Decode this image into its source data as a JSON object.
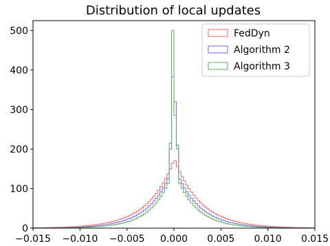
{
  "chart_data": {
    "type": "histogram",
    "title": "Distribution of local updates",
    "xlabel": "",
    "ylabel": "",
    "xlim": [
      -0.015,
      0.015
    ],
    "ylim": [
      0,
      525
    ],
    "x_ticks": [
      -0.015,
      -0.01,
      -0.005,
      0.0,
      0.005,
      0.01,
      0.015
    ],
    "x_tick_labels": [
      "−0.015",
      "−0.010",
      "−0.005",
      "0.000",
      "0.005",
      "0.010",
      "0.015"
    ],
    "y_ticks": [
      0,
      100,
      200,
      300,
      400,
      500
    ],
    "y_tick_labels": [
      "0",
      "100",
      "200",
      "300",
      "400",
      "500"
    ],
    "grid": false,
    "legend_position": "top-right",
    "bin_width": 0.00025,
    "series": [
      {
        "name": "FedDyn",
        "color": "#ff6666",
        "peak": 175,
        "peak_center": 5e-05,
        "decay": 0.0028,
        "spike_height": 0,
        "spike_bins": []
      },
      {
        "name": "Algorithm 2",
        "color": "#6a6aef",
        "peak": 160,
        "peak_center": 0.0,
        "decay": 0.0025,
        "spike_height": 383,
        "spike_bins": [
          [
            -0.0005,
            200
          ],
          [
            -0.00025,
            383
          ],
          [
            0.0,
            320
          ],
          [
            0.00025,
            210
          ]
        ]
      },
      {
        "name": "Algorithm 3",
        "color": "#5caa5c",
        "peak": 150,
        "peak_center": 0.0,
        "decay": 0.0022,
        "spike_height": 500,
        "spike_bins": [
          [
            -0.0005,
            215
          ],
          [
            -0.00025,
            500
          ],
          [
            0.0,
            285
          ],
          [
            0.00025,
            200
          ]
        ]
      }
    ]
  }
}
